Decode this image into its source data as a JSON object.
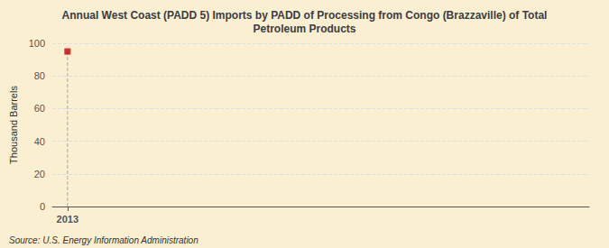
{
  "chart_data": {
    "type": "scatter",
    "title": "Annual West Coast (PADD 5) Imports by PADD of Processing from Congo (Brazzaville) of Total\nPetroleum Products",
    "ylabel": "Thousand Barrels",
    "annotation": "Source: U.S. Energy Information Administration",
    "x": [
      2013
    ],
    "values": [
      95
    ],
    "color": "#cc0000",
    "marker": "square",
    "xlim": [
      2012.7,
      2023.3
    ],
    "xticks": [
      2013
    ],
    "ylim": [
      0,
      100
    ],
    "yticks": [
      0,
      20,
      40,
      60,
      80,
      100
    ],
    "grid": true
  }
}
